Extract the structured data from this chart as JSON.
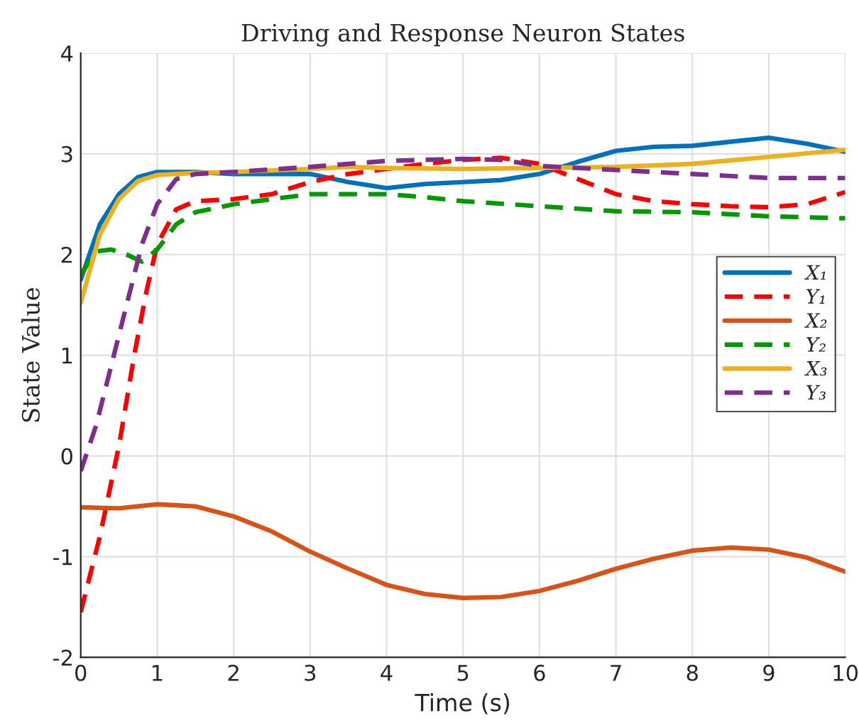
{
  "chart_data": {
    "type": "line",
    "title": "Driving and Response Neuron States",
    "xlabel": "Time (s)",
    "ylabel": "State Value",
    "xlim": [
      0,
      10
    ],
    "xticks": [
      0,
      1,
      2,
      3,
      4,
      5,
      6,
      7,
      8,
      9,
      10
    ],
    "ylim": [
      -2,
      4
    ],
    "yticks": [
      -2,
      -1,
      0,
      1,
      2,
      3,
      4
    ],
    "grid": true,
    "legend": "right",
    "marker": "none",
    "series": [
      {
        "name": "X₁",
        "color": "#0072bd",
        "line_style": "solid",
        "x": [
          0,
          0.25,
          0.5,
          0.75,
          1,
          1.5,
          2,
          2.5,
          3,
          3.5,
          4,
          4.5,
          5,
          5.5,
          6,
          6.5,
          7,
          7.5,
          8,
          8.5,
          9,
          9.5,
          10
        ],
        "values": [
          1.75,
          2.3,
          2.6,
          2.77,
          2.82,
          2.82,
          2.8,
          2.8,
          2.8,
          2.72,
          2.66,
          2.7,
          2.72,
          2.74,
          2.8,
          2.92,
          3.03,
          3.07,
          3.08,
          3.12,
          3.16,
          3.1,
          3.02
        ]
      },
      {
        "name": "Y₁",
        "color": "#ff0000",
        "line_style": "dashed",
        "x": [
          0,
          0.25,
          0.5,
          0.7,
          0.85,
          1,
          1.25,
          1.5,
          2,
          2.5,
          3,
          3.5,
          4,
          4.5,
          5,
          5.5,
          6,
          6.5,
          7,
          7.5,
          8,
          8.5,
          9,
          9.5,
          10
        ],
        "values": [
          -1.55,
          -0.8,
          0.1,
          1.0,
          1.6,
          2.1,
          2.45,
          2.53,
          2.55,
          2.6,
          2.72,
          2.8,
          2.85,
          2.9,
          2.94,
          2.96,
          2.9,
          2.75,
          2.6,
          2.53,
          2.5,
          2.48,
          2.47,
          2.5,
          2.62
        ]
      },
      {
        "name": "X₂",
        "color": "#d95319",
        "line_style": "solid",
        "x": [
          0,
          0.5,
          1,
          1.5,
          2,
          2.5,
          3,
          3.5,
          4,
          4.5,
          5,
          5.5,
          6,
          6.5,
          7,
          7.5,
          8,
          8.5,
          9,
          9.5,
          10
        ],
        "values": [
          -0.51,
          -0.52,
          -0.48,
          -0.5,
          -0.6,
          -0.75,
          -0.95,
          -1.12,
          -1.28,
          -1.37,
          -1.41,
          -1.4,
          -1.34,
          -1.24,
          -1.12,
          -1.02,
          -0.94,
          -0.91,
          -0.93,
          -1.01,
          -1.15
        ]
      },
      {
        "name": "Y₂",
        "color": "#009900",
        "line_style": "dashed",
        "x": [
          0,
          0.2,
          0.4,
          0.6,
          0.8,
          1,
          1.25,
          1.5,
          2,
          2.5,
          3,
          4,
          4.5,
          5,
          6,
          7,
          8,
          8.5,
          9,
          10
        ],
        "values": [
          1.8,
          2.03,
          2.05,
          2.0,
          1.93,
          2.05,
          2.3,
          2.42,
          2.5,
          2.55,
          2.6,
          2.6,
          2.57,
          2.53,
          2.48,
          2.43,
          2.42,
          2.4,
          2.38,
          2.36
        ]
      },
      {
        "name": "X₃",
        "color": "#edb120",
        "line_style": "solid",
        "x": [
          0,
          0.25,
          0.5,
          0.75,
          1,
          1.5,
          2,
          3,
          3.5,
          4,
          5,
          6,
          7,
          8,
          9,
          10
        ],
        "values": [
          1.52,
          2.2,
          2.55,
          2.73,
          2.79,
          2.81,
          2.82,
          2.85,
          2.87,
          2.86,
          2.85,
          2.86,
          2.87,
          2.9,
          2.97,
          3.04
        ]
      },
      {
        "name": "Y₃",
        "color": "#7e2f8e",
        "line_style": "dashed",
        "x": [
          0,
          0.2,
          0.4,
          0.6,
          0.8,
          1,
          1.25,
          1.5,
          2,
          3,
          4,
          5,
          5.5,
          6,
          7,
          8,
          9,
          10
        ],
        "values": [
          -0.15,
          0.3,
          0.9,
          1.5,
          2.1,
          2.5,
          2.75,
          2.8,
          2.82,
          2.87,
          2.93,
          2.95,
          2.94,
          2.88,
          2.84,
          2.8,
          2.76,
          2.76
        ]
      }
    ]
  }
}
